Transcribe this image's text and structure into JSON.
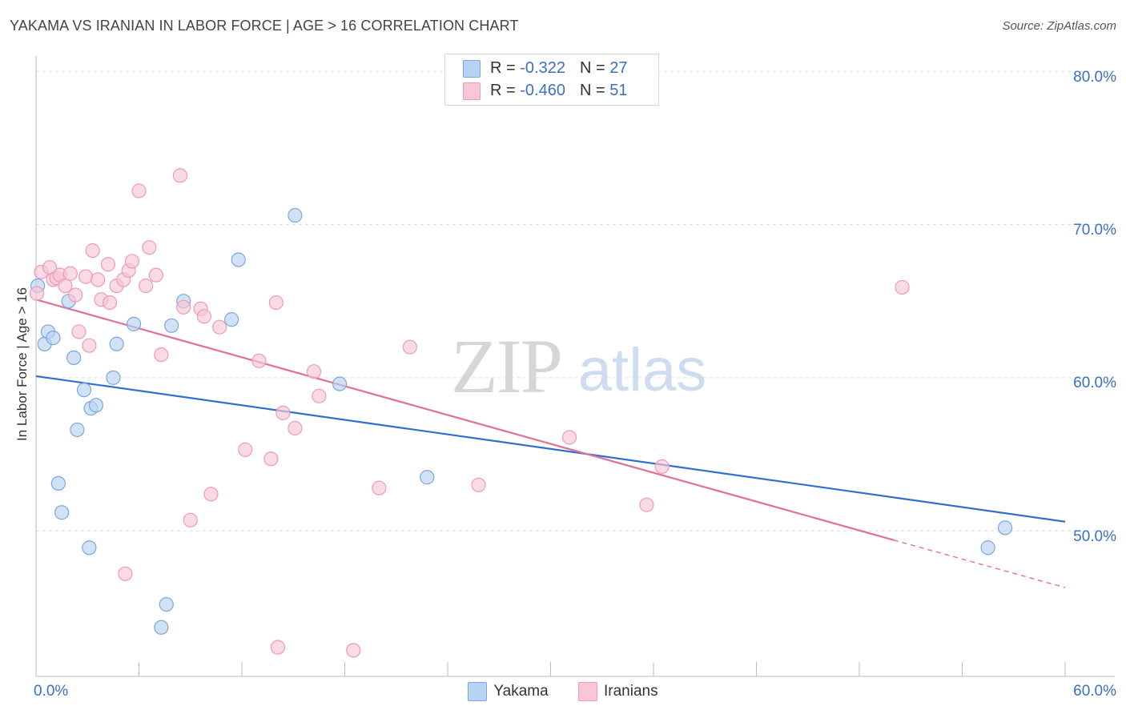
{
  "header": {
    "title": "YAKAMA VS IRANIAN IN LABOR FORCE | AGE > 16 CORRELATION CHART",
    "source": "Source: ZipAtlas.com"
  },
  "legend_top": {
    "rows": [
      {
        "r_label": "R = ",
        "r_value": "-0.322",
        "n_label": "N = ",
        "n_value": "27"
      },
      {
        "r_label": "R = ",
        "r_value": "-0.460",
        "n_label": "N = ",
        "n_value": "51"
      }
    ]
  },
  "watermark": {
    "zip": "ZIP",
    "atlas": "atlas"
  },
  "colors": {
    "yakama_fill": "#b8d2f3",
    "yakama_stroke": "#7aa7e0",
    "yakama_line": "#2f6fce",
    "iranians_fill": "#f8c6d6",
    "iranians_stroke": "#ef9ab6",
    "iranians_line": "#e0709a",
    "tick_text": "#3a6fc4",
    "grid": "#dddddd"
  },
  "chart_data": {
    "type": "scatter",
    "title": "YAKAMA VS IRANIAN IN LABOR FORCE | AGE > 16 CORRELATION CHART",
    "xlabel": "",
    "ylabel": "In Labor Force | Age > 16",
    "xlim": [
      0,
      60
    ],
    "ylim": [
      40.5,
      81
    ],
    "x_tick_labels": [
      "0.0%",
      "60.0%"
    ],
    "y_ticks": [
      50,
      60,
      70,
      80
    ],
    "y_tick_labels": [
      "50.0%",
      "60.0%",
      "70.0%",
      "80.0%"
    ],
    "grid": true,
    "legend_placement": "bottom",
    "series": [
      {
        "name": "Yakama",
        "r": -0.322,
        "n": 27,
        "trend": {
          "x0": 0,
          "y0": 60.1,
          "x1": 60,
          "y1": 50.6
        },
        "points": [
          {
            "x": 0.1,
            "y": 66.0
          },
          {
            "x": 0.5,
            "y": 62.2
          },
          {
            "x": 0.7,
            "y": 63.0
          },
          {
            "x": 1.0,
            "y": 62.6
          },
          {
            "x": 1.3,
            "y": 53.1
          },
          {
            "x": 1.5,
            "y": 51.2
          },
          {
            "x": 1.9,
            "y": 65.0
          },
          {
            "x": 2.2,
            "y": 61.3
          },
          {
            "x": 2.4,
            "y": 56.6
          },
          {
            "x": 2.8,
            "y": 59.2
          },
          {
            "x": 3.1,
            "y": 48.9
          },
          {
            "x": 3.2,
            "y": 58.0
          },
          {
            "x": 3.5,
            "y": 58.2
          },
          {
            "x": 4.5,
            "y": 60.0
          },
          {
            "x": 4.7,
            "y": 62.2
          },
          {
            "x": 5.7,
            "y": 63.5
          },
          {
            "x": 7.3,
            "y": 43.7
          },
          {
            "x": 7.6,
            "y": 45.2
          },
          {
            "x": 7.9,
            "y": 63.4
          },
          {
            "x": 8.6,
            "y": 65.0
          },
          {
            "x": 11.4,
            "y": 63.8
          },
          {
            "x": 11.8,
            "y": 67.7
          },
          {
            "x": 15.1,
            "y": 70.6
          },
          {
            "x": 17.7,
            "y": 59.6
          },
          {
            "x": 22.8,
            "y": 53.5
          },
          {
            "x": 55.5,
            "y": 48.9
          },
          {
            "x": 56.5,
            "y": 50.2
          }
        ]
      },
      {
        "name": "Iranians",
        "r": -0.46,
        "n": 51,
        "trend": {
          "x0": 0,
          "y0": 65.1,
          "x1": 50,
          "y1": 49.4,
          "dash_x1": 60,
          "dash_y1": 46.3
        },
        "points": [
          {
            "x": 0.05,
            "y": 65.5
          },
          {
            "x": 0.3,
            "y": 66.9
          },
          {
            "x": 0.8,
            "y": 67.2
          },
          {
            "x": 1.0,
            "y": 66.4
          },
          {
            "x": 1.2,
            "y": 66.5
          },
          {
            "x": 1.4,
            "y": 66.7
          },
          {
            "x": 1.7,
            "y": 66.0
          },
          {
            "x": 2.0,
            "y": 66.8
          },
          {
            "x": 2.3,
            "y": 65.4
          },
          {
            "x": 2.5,
            "y": 63.0
          },
          {
            "x": 2.9,
            "y": 66.6
          },
          {
            "x": 3.1,
            "y": 62.1
          },
          {
            "x": 3.3,
            "y": 68.3
          },
          {
            "x": 3.6,
            "y": 66.4
          },
          {
            "x": 3.8,
            "y": 65.1
          },
          {
            "x": 4.2,
            "y": 67.4
          },
          {
            "x": 4.3,
            "y": 64.9
          },
          {
            "x": 4.7,
            "y": 66.0
          },
          {
            "x": 5.1,
            "y": 66.4
          },
          {
            "x": 5.2,
            "y": 47.2
          },
          {
            "x": 5.4,
            "y": 67.0
          },
          {
            "x": 5.6,
            "y": 67.6
          },
          {
            "x": 6.0,
            "y": 72.2
          },
          {
            "x": 6.4,
            "y": 66.0
          },
          {
            "x": 6.6,
            "y": 68.5
          },
          {
            "x": 7.0,
            "y": 66.7
          },
          {
            "x": 7.3,
            "y": 61.5
          },
          {
            "x": 8.4,
            "y": 73.2
          },
          {
            "x": 8.6,
            "y": 64.6
          },
          {
            "x": 9.0,
            "y": 50.7
          },
          {
            "x": 9.6,
            "y": 64.5
          },
          {
            "x": 9.8,
            "y": 64.0
          },
          {
            "x": 10.2,
            "y": 52.4
          },
          {
            "x": 10.7,
            "y": 63.3
          },
          {
            "x": 12.2,
            "y": 55.3
          },
          {
            "x": 13.0,
            "y": 61.1
          },
          {
            "x": 13.7,
            "y": 54.7
          },
          {
            "x": 14.0,
            "y": 64.9
          },
          {
            "x": 14.1,
            "y": 42.4
          },
          {
            "x": 14.4,
            "y": 57.7
          },
          {
            "x": 15.1,
            "y": 56.7
          },
          {
            "x": 16.2,
            "y": 60.4
          },
          {
            "x": 16.5,
            "y": 58.8
          },
          {
            "x": 18.5,
            "y": 42.2
          },
          {
            "x": 20.0,
            "y": 52.8
          },
          {
            "x": 21.8,
            "y": 62.0
          },
          {
            "x": 25.8,
            "y": 53.0
          },
          {
            "x": 31.1,
            "y": 56.1
          },
          {
            "x": 35.6,
            "y": 51.7
          },
          {
            "x": 36.5,
            "y": 54.2
          },
          {
            "x": 50.5,
            "y": 65.9
          }
        ]
      }
    ]
  },
  "bottom_legend": [
    "Yakama",
    "Iranians"
  ]
}
